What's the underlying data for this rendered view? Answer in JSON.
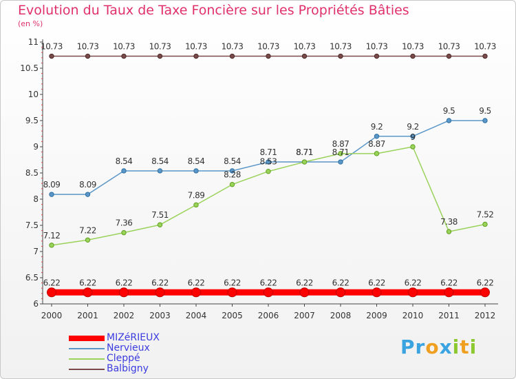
{
  "title": "Evolution du Taux de Taxe Foncière sur les Propriétés Bâties",
  "unit": "(en %)",
  "logo": {
    "letters": [
      "P",
      "r",
      "o",
      "x",
      "i",
      "t",
      "i"
    ],
    "colors": [
      "#3aa3e0",
      "#3aa3e0",
      "#f0a020",
      "#3aa3e0",
      "#8cc830",
      "#f0a020",
      "#8cc830"
    ]
  },
  "chart_data": {
    "type": "line",
    "title": "Evolution du Taux de Taxe Foncière sur les Propriétés Bâties",
    "ylabel": "(en %)",
    "x": [
      "2000",
      "2001",
      "2002",
      "2003",
      "2004",
      "2005",
      "2006",
      "2007",
      "2008",
      "2009",
      "2010",
      "2011",
      "2012"
    ],
    "ylim": [
      6,
      11
    ],
    "yticks": [
      "6",
      "6.5",
      "7",
      "7.5",
      "8",
      "8.5",
      "9",
      "9.5",
      "10",
      "10.5",
      "11"
    ],
    "grid": false,
    "legend_position": "bottom-left",
    "series": [
      {
        "name": "MIZéRIEUX",
        "color": "#ff0000",
        "values": [
          6.22,
          6.22,
          6.22,
          6.22,
          6.22,
          6.22,
          6.22,
          6.22,
          6.22,
          6.22,
          6.22,
          6.22,
          6.22
        ],
        "labels": [
          "6.22",
          "6.22",
          "6.22",
          "6.22",
          "6.22",
          "6.22",
          "6.22",
          "6.22",
          "6.22",
          "6.22",
          "6.22",
          "6.22",
          "6.22"
        ]
      },
      {
        "name": "Nervieux",
        "color": "#5a96c8",
        "values": [
          8.09,
          8.09,
          8.54,
          8.54,
          8.54,
          8.54,
          8.71,
          8.71,
          8.71,
          9.2,
          9.2,
          9.5,
          9.5
        ],
        "labels": [
          "8.09",
          "8.09",
          "8.54",
          "8.54",
          "8.54",
          "8.54",
          "8.71",
          "8.71",
          "8.71",
          "9.2",
          "9.2",
          "9.5",
          "9.5"
        ]
      },
      {
        "name": "Cleppé",
        "color": "#9ad25a",
        "values": [
          7.12,
          7.22,
          7.36,
          7.51,
          7.89,
          8.28,
          8.53,
          8.71,
          8.87,
          8.87,
          9,
          7.38,
          7.52
        ],
        "labels": [
          "7.12",
          "7.22",
          "7.36",
          "7.51",
          "7.89",
          "8.28",
          "8.53",
          "8.71",
          "8.87",
          "8.87",
          "9",
          "7.38",
          "7.52"
        ]
      },
      {
        "name": "Balbigny",
        "color": "#7a4a4a",
        "values": [
          10.73,
          10.73,
          10.73,
          10.73,
          10.73,
          10.73,
          10.73,
          10.73,
          10.73,
          10.73,
          10.73,
          10.73,
          10.73
        ],
        "labels": [
          "10.73",
          "10.73",
          "10.73",
          "10.73",
          "10.73",
          "10.73",
          "10.73",
          "10.73",
          "10.73",
          "10.73",
          "10.73",
          "10.73",
          "10.73"
        ]
      }
    ]
  }
}
